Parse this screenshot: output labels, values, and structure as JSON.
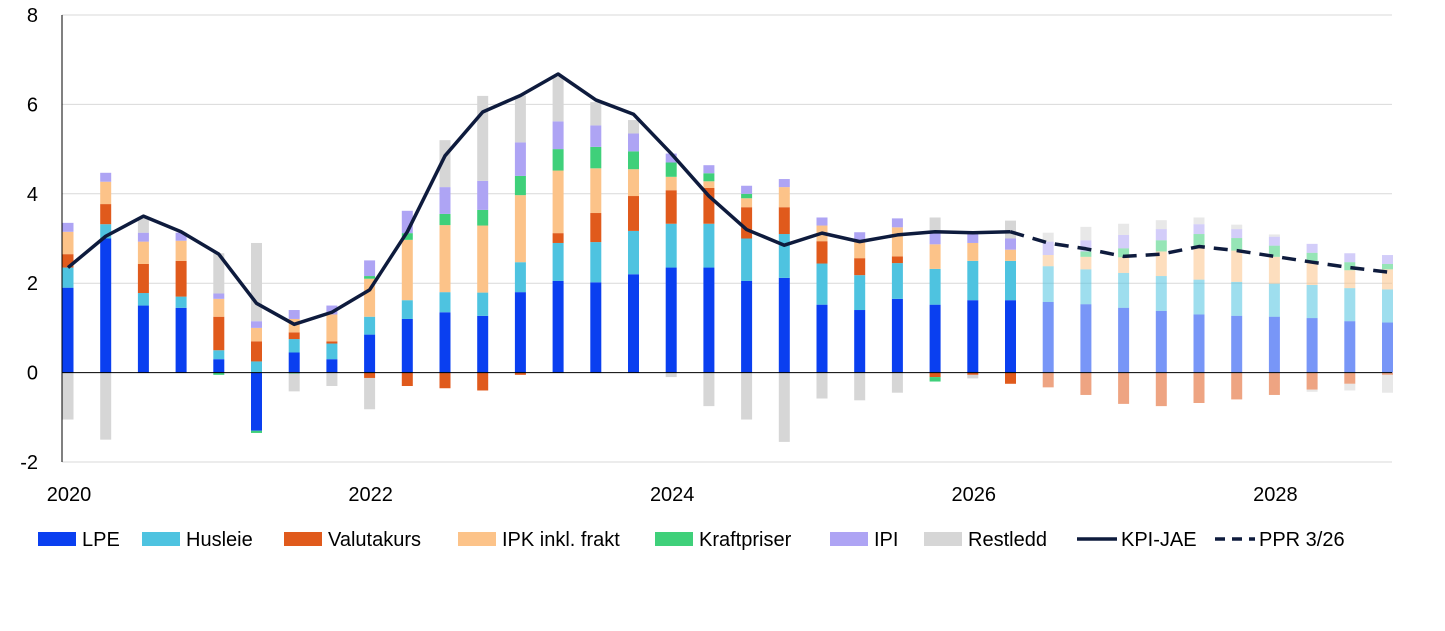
{
  "chart_data": {
    "type": "bar",
    "stacked": true,
    "combined_with": "line",
    "grid": "horizontal",
    "legend_position": "bottom",
    "ylim": [
      -2,
      8
    ],
    "y_ticks": [
      -2,
      0,
      2,
      4,
      6,
      8
    ],
    "x_range": [
      2020.0,
      2028.83
    ],
    "x_ticks": [
      2020,
      2022,
      2024,
      2026,
      2028
    ],
    "x_tick_labels": [
      "2020",
      "2022",
      "2024",
      "2026",
      "2028"
    ],
    "x": [
      2020.0,
      2020.25,
      2020.5,
      2020.75,
      2021.0,
      2021.25,
      2021.5,
      2021.75,
      2022.0,
      2022.25,
      2022.5,
      2022.75,
      2023.0,
      2023.25,
      2023.5,
      2023.75,
      2024.0,
      2024.25,
      2024.5,
      2024.75,
      2025.0,
      2025.25,
      2025.5,
      2025.75,
      2026.0,
      2026.25,
      2026.5,
      2026.75,
      2027.0,
      2027.25,
      2027.5,
      2027.75,
      2028.0,
      2028.25,
      2028.5,
      2028.75
    ],
    "forecast_from": 2026.5,
    "series": [
      {
        "name": "LPE",
        "color": "#0a3ff0",
        "values": [
          1.9,
          3.0,
          1.5,
          1.45,
          0.3,
          -1.3,
          0.45,
          0.3,
          0.85,
          1.2,
          1.35,
          1.27,
          1.8,
          2.05,
          2.02,
          2.2,
          2.35,
          2.35,
          2.05,
          2.12,
          1.52,
          1.4,
          1.65,
          1.52,
          1.62,
          1.62,
          1.58,
          1.53,
          1.45,
          1.38,
          1.3,
          1.27,
          1.25,
          1.22,
          1.15,
          1.12
        ]
      },
      {
        "name": "Husleie",
        "color": "#4ec3e0",
        "values": [
          0.45,
          0.32,
          0.28,
          0.25,
          0.2,
          0.25,
          0.3,
          0.35,
          0.4,
          0.42,
          0.45,
          0.52,
          0.67,
          0.85,
          0.9,
          0.97,
          0.98,
          0.98,
          0.95,
          0.98,
          0.92,
          0.78,
          0.8,
          0.8,
          0.88,
          0.88,
          0.8,
          0.78,
          0.78,
          0.78,
          0.78,
          0.76,
          0.74,
          0.74,
          0.74,
          0.74
        ]
      },
      {
        "name": "Valutakurs",
        "color": "#e05a1c",
        "values": [
          0.3,
          0.45,
          0.65,
          0.8,
          0.75,
          0.45,
          0.15,
          0.05,
          -0.12,
          -0.3,
          -0.35,
          -0.4,
          -0.05,
          0.22,
          0.65,
          0.78,
          0.75,
          0.8,
          0.7,
          0.6,
          0.5,
          0.38,
          0.15,
          -0.1,
          -0.05,
          -0.25,
          -0.33,
          -0.5,
          -0.7,
          -0.75,
          -0.68,
          -0.6,
          -0.5,
          -0.38,
          -0.25,
          -0.05
        ]
      },
      {
        "name": "IPK inkl. frakt",
        "color": "#fcc389",
        "values": [
          0.5,
          0.5,
          0.5,
          0.45,
          0.4,
          0.3,
          0.3,
          0.6,
          0.85,
          1.35,
          1.5,
          1.5,
          1.5,
          1.4,
          1.0,
          0.6,
          0.3,
          0.15,
          0.2,
          0.45,
          0.35,
          0.38,
          0.65,
          0.55,
          0.4,
          0.25,
          0.25,
          0.28,
          0.35,
          0.55,
          0.72,
          0.7,
          0.6,
          0.5,
          0.4,
          0.45
        ]
      },
      {
        "name": "Kraftpriser",
        "color": "#3fd07a",
        "values": [
          0.0,
          0.0,
          0.0,
          0.0,
          -0.05,
          -0.05,
          -0.02,
          0.0,
          0.06,
          0.15,
          0.25,
          0.35,
          0.43,
          0.48,
          0.48,
          0.4,
          0.32,
          0.18,
          0.1,
          0.0,
          0.0,
          0.0,
          0.0,
          -0.1,
          0.0,
          0.0,
          0.0,
          0.12,
          0.2,
          0.25,
          0.3,
          0.28,
          0.25,
          0.22,
          0.18,
          0.12
        ]
      },
      {
        "name": "IPI",
        "color": "#aea4f4",
        "values": [
          0.2,
          0.2,
          0.2,
          0.18,
          0.12,
          0.15,
          0.2,
          0.2,
          0.35,
          0.5,
          0.6,
          0.65,
          0.75,
          0.62,
          0.48,
          0.4,
          0.2,
          0.18,
          0.18,
          0.18,
          0.18,
          0.2,
          0.2,
          0.3,
          0.25,
          0.25,
          0.3,
          0.25,
          0.3,
          0.25,
          0.22,
          0.2,
          0.2,
          0.2,
          0.2,
          0.2
        ]
      },
      {
        "name": "Restledd",
        "color": "#d6d6d6",
        "values": [
          -1.05,
          -1.5,
          0.35,
          0.0,
          0.9,
          1.75,
          -0.4,
          -0.3,
          -0.7,
          0.0,
          1.05,
          1.9,
          1.05,
          1.0,
          0.52,
          0.3,
          -0.1,
          -0.75,
          -1.05,
          -1.55,
          -0.58,
          -0.62,
          -0.45,
          0.3,
          -0.08,
          0.4,
          0.2,
          0.3,
          0.25,
          0.2,
          0.15,
          0.1,
          0.05,
          -0.05,
          -0.15,
          -0.4
        ]
      }
    ],
    "lines": [
      {
        "name": "KPI-JAE",
        "color": "#0e1b3d",
        "style": "solid",
        "x": [
          2020.0,
          2020.25,
          2020.5,
          2020.75,
          2021.0,
          2021.25,
          2021.5,
          2021.75,
          2022.0,
          2022.25,
          2022.5,
          2022.75,
          2023.0,
          2023.25,
          2023.5,
          2023.75,
          2024.0,
          2024.25,
          2024.5,
          2024.75,
          2025.0,
          2025.25,
          2025.5,
          2025.75,
          2026.0,
          2026.25
        ],
        "values": [
          2.35,
          3.05,
          3.5,
          3.15,
          2.65,
          1.55,
          1.08,
          1.35,
          1.85,
          3.15,
          4.85,
          5.83,
          6.2,
          6.68,
          6.1,
          5.78,
          4.9,
          3.95,
          3.2,
          2.85,
          3.12,
          2.93,
          3.08,
          3.15,
          3.13,
          3.15
        ]
      },
      {
        "name": "PPR 3/26",
        "color": "#0e1b3d",
        "style": "dashed",
        "x": [
          2026.25,
          2026.5,
          2026.75,
          2027.0,
          2027.25,
          2027.5,
          2027.75,
          2028.0,
          2028.25,
          2028.5,
          2028.75
        ],
        "values": [
          3.15,
          2.9,
          2.77,
          2.6,
          2.65,
          2.82,
          2.73,
          2.6,
          2.47,
          2.35,
          2.25
        ]
      }
    ]
  }
}
